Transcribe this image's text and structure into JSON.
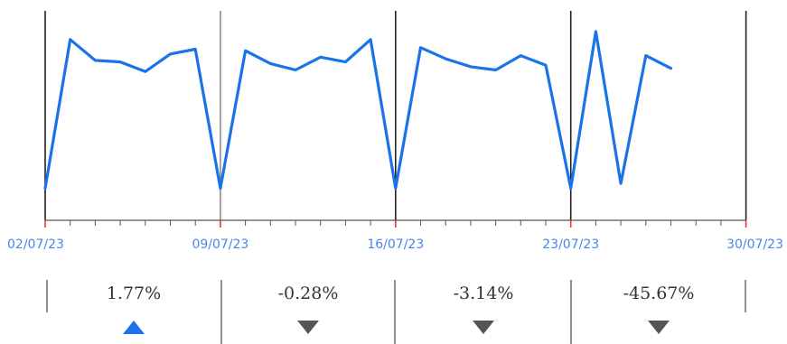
{
  "chart_data": {
    "type": "line",
    "title": "",
    "xlabel": "",
    "ylabel": "",
    "x_ticks": [
      "02/07/23",
      "09/07/23",
      "16/07/23",
      "23/07/23",
      "30/07/23"
    ],
    "series": [
      {
        "color": "#1a73e8",
        "x": [
          "02/07/23",
          "03/07/23",
          "04/07/23",
          "05/07/23",
          "06/07/23",
          "07/07/23",
          "08/07/23",
          "09/07/23",
          "10/07/23",
          "11/07/23",
          "12/07/23",
          "13/07/23",
          "14/07/23",
          "15/07/23",
          "16/07/23",
          "17/07/23",
          "18/07/23",
          "19/07/23",
          "20/07/23",
          "21/07/23",
          "22/07/23",
          "23/07/23",
          "24/07/23",
          "25/07/23",
          "26/07/23",
          "27/07/23"
        ],
        "values": [
          2,
          95,
          82,
          81,
          75,
          86,
          89,
          2,
          88,
          80,
          76,
          84,
          81,
          95,
          2,
          90,
          83,
          78,
          76,
          85,
          79,
          2,
          100,
          5,
          85,
          77
        ]
      }
    ],
    "ylim": [
      0,
      100
    ],
    "y_axis_shown": false,
    "grid": "vertical lines at week boundaries",
    "weekly_changes": [
      {
        "label": "1.77%",
        "direction": "up",
        "color": "#1a73e8"
      },
      {
        "label": "-0.28%",
        "direction": "down",
        "color": "#555555"
      },
      {
        "label": "-3.14%",
        "direction": "down",
        "color": "#555555"
      },
      {
        "label": "-45.67%",
        "direction": "down",
        "color": "#555555"
      }
    ]
  },
  "colors": {
    "line": "#1a73e8",
    "tick_mark": "#e53935",
    "tick_label": "#4a86e8",
    "up_arrow": "#1a73e8",
    "down_arrow": "#555555"
  }
}
